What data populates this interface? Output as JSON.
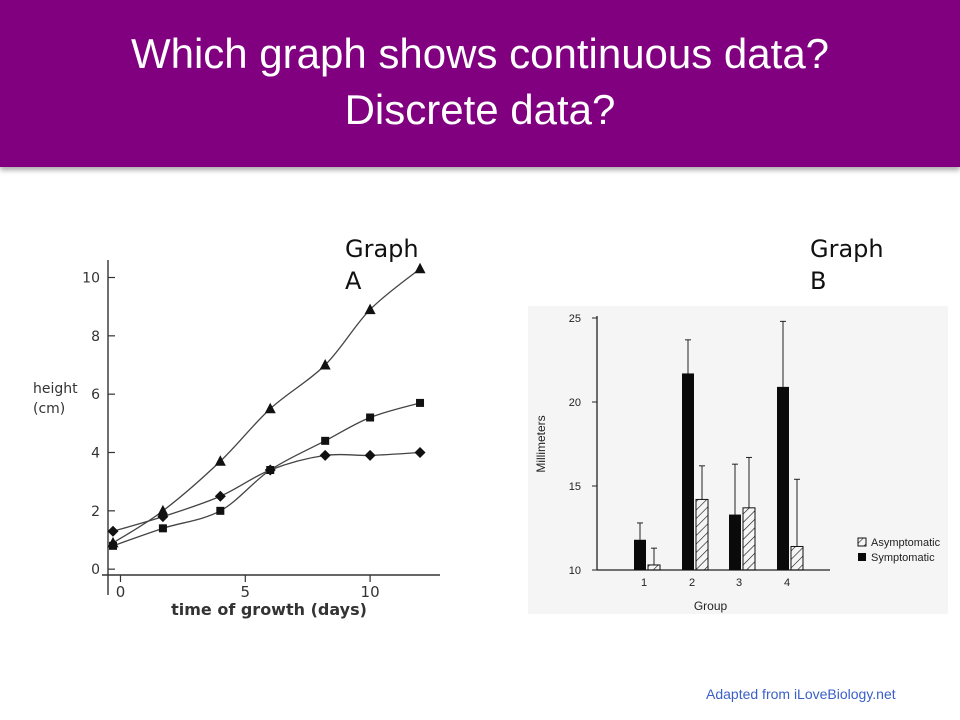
{
  "title": {
    "line1": "Which graph shows continuous data?",
    "line2": "Discrete data?"
  },
  "labels": {
    "graph_a_line1": "Graph",
    "graph_a_line2": "A",
    "graph_b_line1": "Graph",
    "graph_b_line2": "B"
  },
  "credit": "Adapted from iLoveBiology.net",
  "colors": {
    "title_bar": "#800080",
    "title_text": "#ffffff",
    "credit": "#3a5fc8"
  },
  "chart_data": [
    {
      "type": "line",
      "ylabel_line1": "height",
      "ylabel_line2": "(cm)",
      "xlabel": "time of growth (days)",
      "xlim": [
        -0.5,
        12.8
      ],
      "ylim": [
        -0.2,
        10.6
      ],
      "x_ticks": [
        "0",
        "5",
        "10"
      ],
      "x_tick_values": [
        0,
        5,
        10
      ],
      "y_ticks": [
        "0",
        "2",
        "4",
        "6",
        "8",
        "10"
      ],
      "y_tick_values": [
        0,
        2,
        4,
        6,
        8,
        10
      ],
      "series": [
        {
          "marker": "triangle",
          "points": [
            [
              -0.3,
              0.9
            ],
            [
              1.7,
              2.0
            ],
            [
              4,
              3.7
            ],
            [
              6,
              5.5
            ],
            [
              8.2,
              7.0
            ],
            [
              10,
              8.9
            ],
            [
              12,
              10.3
            ]
          ]
        },
        {
          "marker": "square",
          "points": [
            [
              -0.3,
              0.8
            ],
            [
              1.7,
              1.4
            ],
            [
              4,
              2.0
            ],
            [
              6,
              3.4
            ],
            [
              8.2,
              4.4
            ],
            [
              10,
              5.2
            ],
            [
              12,
              5.7
            ]
          ]
        },
        {
          "marker": "diamond",
          "points": [
            [
              -0.3,
              1.3
            ],
            [
              1.7,
              1.8
            ],
            [
              4,
              2.5
            ],
            [
              6,
              3.4
            ],
            [
              8.2,
              3.9
            ],
            [
              10,
              3.9
            ],
            [
              12,
              4.0
            ]
          ]
        }
      ]
    },
    {
      "type": "bar",
      "categories": [
        "1",
        "2",
        "3",
        "4"
      ],
      "xlabel": "Group",
      "ylabel": "Millimeters",
      "ylim": [
        10,
        25
      ],
      "y_ticks": [
        "10",
        "15",
        "20",
        "25"
      ],
      "y_tick_values": [
        10,
        15,
        20,
        25
      ],
      "legend_position": "lower-right",
      "series": [
        {
          "name": "Symptomatic",
          "fill": "solid",
          "values": [
            11.8,
            21.7,
            13.3,
            20.9
          ],
          "error_top": [
            12.8,
            23.7,
            16.3,
            24.8
          ]
        },
        {
          "name": "Asymptomatic",
          "fill": "hatched",
          "values": [
            10.3,
            14.2,
            13.7,
            11.4
          ],
          "error_top": [
            11.3,
            16.2,
            16.7,
            15.4
          ]
        }
      ]
    }
  ]
}
